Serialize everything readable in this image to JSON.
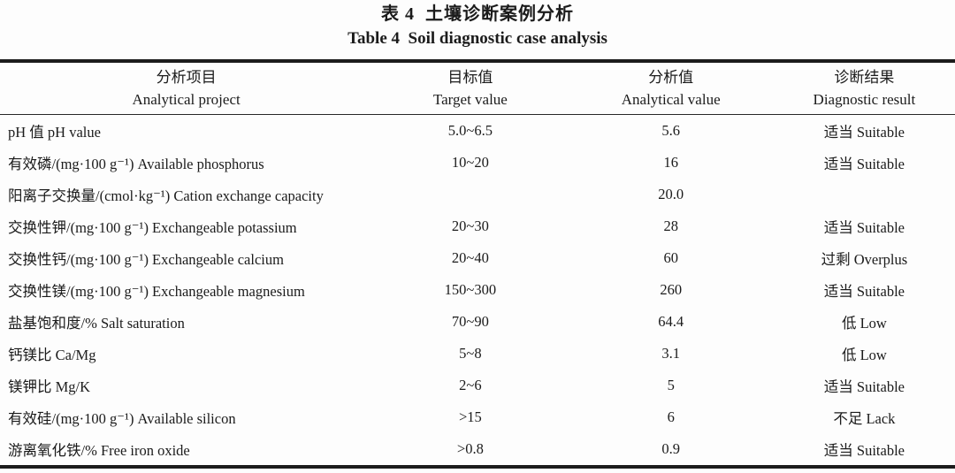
{
  "title": {
    "zh": "表 4  土壤诊断案例分析",
    "en": "Table 4  Soil diagnostic case analysis"
  },
  "table": {
    "columns": [
      {
        "zh": "分析项目",
        "en": "Analytical project"
      },
      {
        "zh": "目标值",
        "en": "Target value"
      },
      {
        "zh": "分析值",
        "en": "Analytical value"
      },
      {
        "zh": "诊断结果",
        "en": "Diagnostic result"
      }
    ],
    "rows": [
      {
        "project": "pH 值 pH value",
        "target": "5.0~6.5",
        "analytical": "5.6",
        "diagnostic": "适当 Suitable"
      },
      {
        "project": "有效磷/(mg·100 g⁻¹) Available phosphorus",
        "target": "10~20",
        "analytical": "16",
        "diagnostic": "适当 Suitable"
      },
      {
        "project": "阳离子交换量/(cmol·kg⁻¹) Cation exchange capacity",
        "target": "",
        "analytical": "20.0",
        "diagnostic": ""
      },
      {
        "project": "交换性钾/(mg·100 g⁻¹) Exchangeable potassium",
        "target": "20~30",
        "analytical": "28",
        "diagnostic": "适当 Suitable"
      },
      {
        "project": "交换性钙/(mg·100 g⁻¹) Exchangeable calcium",
        "target": "20~40",
        "analytical": "60",
        "diagnostic": "过剩 Overplus"
      },
      {
        "project": "交换性镁/(mg·100 g⁻¹) Exchangeable magnesium",
        "target": "150~300",
        "analytical": "260",
        "diagnostic": "适当 Suitable"
      },
      {
        "project": "盐基饱和度/% Salt saturation",
        "target": "70~90",
        "analytical": "64.4",
        "diagnostic": "低 Low"
      },
      {
        "project": "钙镁比 Ca/Mg",
        "target": "5~8",
        "analytical": "3.1",
        "diagnostic": "低 Low"
      },
      {
        "project": "镁钾比 Mg/K",
        "target": "2~6",
        "analytical": "5",
        "diagnostic": "适当 Suitable"
      },
      {
        "project": "有效硅/(mg·100 g⁻¹) Available silicon",
        "target": ">15",
        "analytical": "6",
        "diagnostic": "不足 Lack"
      },
      {
        "project": "游离氧化铁/% Free iron oxide",
        "target": ">0.8",
        "analytical": "0.9",
        "diagnostic": "适当 Suitable"
      }
    ]
  },
  "colors": {
    "background": "#fdfdfd",
    "text": "#1b1b1b",
    "rule": "#1c1c1c"
  }
}
